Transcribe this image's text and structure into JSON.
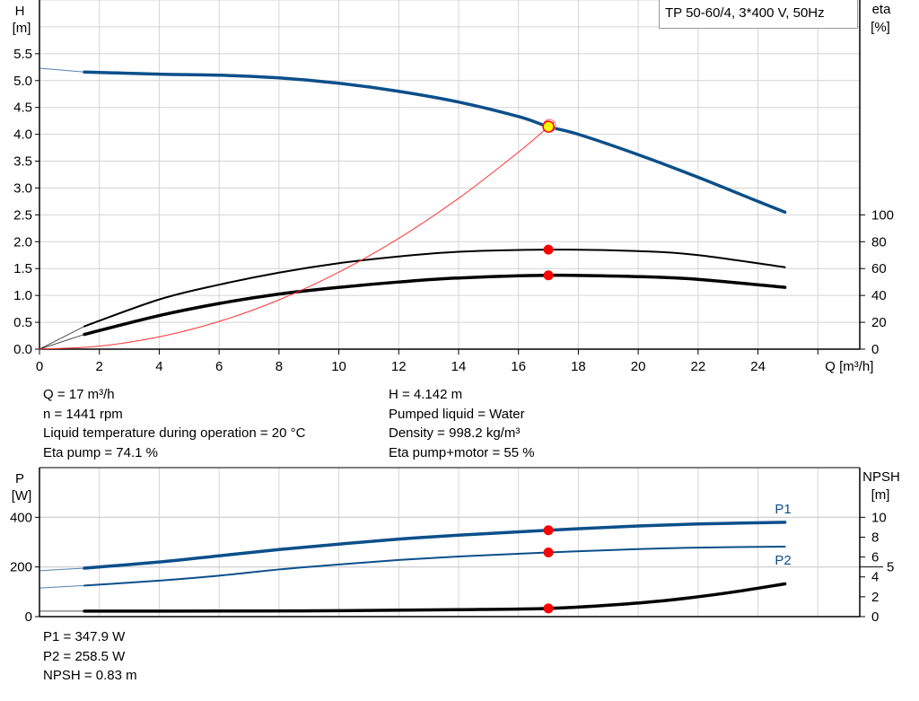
{
  "chart_data": [
    {
      "type": "line",
      "title": "TP 50-60/4, 3*400 V, 50Hz",
      "xlabel": "Q [m³/h]",
      "ylabel": "H\n[m]",
      "ylabel_left_lines": [
        "H",
        "[m]"
      ],
      "ylabel_right_lines": [
        "eta",
        "[%]"
      ],
      "xlim": [
        0,
        27.4
      ],
      "ylim_left": [
        0,
        6.5
      ],
      "ylim_right": [
        0,
        260
      ],
      "x_ticks": [
        "0",
        "2",
        "4",
        "6",
        "8",
        "10",
        "12",
        "14",
        "16",
        "18",
        "20",
        "22",
        "24"
      ],
      "y_ticks_left": [
        "0.0",
        "0.5",
        "1.0",
        "1.5",
        "2.0",
        "2.5",
        "3.0",
        "3.5",
        "4.0",
        "4.5",
        "5.0",
        "5.5"
      ],
      "y_ticks_right": [
        "0",
        "20",
        "40",
        "60",
        "80",
        "100"
      ],
      "grid": true,
      "series": [
        {
          "id": "H",
          "axis": "left",
          "color": "#0b4f8a",
          "width": 3.5,
          "x": [
            1.5,
            4,
            6,
            8,
            10,
            12,
            14,
            16,
            17,
            18,
            20,
            22,
            24,
            24.9
          ],
          "y": [
            5.16,
            5.12,
            5.1,
            5.05,
            4.95,
            4.8,
            4.6,
            4.33,
            4.142,
            4.0,
            3.62,
            3.2,
            2.75,
            2.55
          ],
          "ext_x": [
            0,
            1.5
          ],
          "ext_y": [
            5.23,
            5.16
          ]
        },
        {
          "id": "eta_pump",
          "axis": "right",
          "color": "#000000",
          "width": 2,
          "x": [
            1.5,
            4,
            6,
            8,
            10,
            12,
            14,
            17,
            20,
            22,
            24.9
          ],
          "y": [
            17,
            37,
            48,
            57,
            64,
            69,
            72.5,
            74.1,
            73,
            70,
            61
          ],
          "ext_x": [
            0,
            1.5
          ],
          "ext_y": [
            0,
            17
          ]
        },
        {
          "id": "eta_pump_motor",
          "axis": "right",
          "color": "#000000",
          "width": 3.5,
          "x": [
            1.5,
            4,
            6,
            8,
            10,
            12,
            14,
            17,
            20,
            22,
            24.9
          ],
          "y": [
            11,
            25,
            34,
            41,
            46,
            50,
            53,
            55,
            54,
            52,
            46
          ],
          "ext_x": [
            0,
            1.5
          ],
          "ext_y": [
            0,
            11
          ]
        },
        {
          "id": "system_curve",
          "axis": "left",
          "color": "#ff3333",
          "width": 1,
          "x": [
            0,
            2,
            4,
            6,
            8,
            10,
            12,
            14,
            16,
            17,
            17.2
          ],
          "y": [
            0,
            0.057,
            0.229,
            0.516,
            0.917,
            1.433,
            2.063,
            2.808,
            3.668,
            4.142,
            4.24
          ]
        }
      ],
      "duty_point": {
        "Q": 17,
        "H": 4.142,
        "eta_pump": 74.1,
        "eta_pump_motor": 55,
        "color": "#ffff00",
        "marker_color": "#ff0000"
      }
    },
    {
      "type": "line",
      "ylabel_left_lines": [
        "P",
        "[W]"
      ],
      "ylabel_right_lines": [
        "NPSH",
        "[m]"
      ],
      "xlim": [
        0,
        27.4
      ],
      "ylim_left": [
        0,
        600
      ],
      "ylim_right": [
        0,
        15
      ],
      "y_ticks_left": [
        "0",
        "200",
        "400"
      ],
      "y_ticks_right": [
        "0",
        "2",
        "4",
        "5",
        "6",
        "8",
        "10"
      ],
      "grid": true,
      "series": [
        {
          "id": "P1",
          "name": "P1",
          "axis": "left",
          "color": "#0b4f8a",
          "width": 3.5,
          "x": [
            1.5,
            4,
            6,
            8,
            10,
            12,
            14,
            17,
            20,
            22,
            24.9
          ],
          "y": [
            195,
            220,
            245,
            270,
            292,
            312,
            328,
            347.9,
            365,
            373,
            380
          ],
          "ext_x": [
            0,
            1.5
          ],
          "ext_y": [
            185,
            195
          ]
        },
        {
          "id": "P2",
          "name": "P2",
          "axis": "left",
          "color": "#0b4f8a",
          "width": 2,
          "x": [
            1.5,
            4,
            6,
            8,
            10,
            12,
            14,
            17,
            20,
            22,
            24.9
          ],
          "y": [
            125,
            145,
            165,
            190,
            210,
            228,
            242,
            258.5,
            272,
            278,
            282
          ],
          "ext_x": [
            0,
            1.5
          ],
          "ext_y": [
            115,
            125
          ]
        },
        {
          "id": "NPSH",
          "axis": "right",
          "color": "#000000",
          "width": 3.5,
          "x": [
            1.5,
            6,
            10,
            14,
            17,
            19,
            21,
            23,
            24.9
          ],
          "y": [
            0.55,
            0.56,
            0.6,
            0.7,
            0.83,
            1.15,
            1.65,
            2.4,
            3.3
          ],
          "ext_x": [
            0,
            1.5
          ],
          "ext_y": [
            0.55,
            0.55
          ]
        }
      ],
      "duty_point": {
        "Q": 17,
        "P1": 347.9,
        "P2": 258.5,
        "NPSH": 0.83,
        "marker_color": "#ff0000"
      }
    }
  ],
  "info_top_left": [
    "Q = 17 m³/h",
    "n = 1441 rpm",
    "Liquid temperature during operation = 20 °C",
    "Eta pump = 74.1 %"
  ],
  "info_top_right": [
    "H = 4.142 m",
    "Pumped liquid = Water",
    "Density = 998.2 kg/m³",
    "Eta pump+motor = 55 %"
  ],
  "info_bottom": [
    "P1 = 347.9 W",
    "P2 = 258.5 W",
    "NPSH = 0.83 m"
  ]
}
